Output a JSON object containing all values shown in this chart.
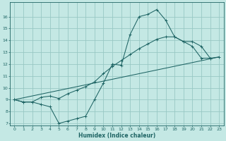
{
  "background_color": "#c4e8e4",
  "grid_color": "#98c8c4",
  "line_color": "#1e6464",
  "xlabel": "Humidex (Indice chaleur)",
  "xlim": [
    -0.5,
    23.5
  ],
  "ylim": [
    6.8,
    17.2
  ],
  "xticks": [
    0,
    1,
    2,
    3,
    4,
    5,
    6,
    7,
    8,
    9,
    10,
    11,
    12,
    13,
    14,
    15,
    16,
    17,
    18,
    19,
    20,
    21,
    22,
    23
  ],
  "yticks": [
    7,
    8,
    9,
    10,
    11,
    12,
    13,
    14,
    15,
    16
  ],
  "curve1_x": [
    0,
    1,
    2,
    3,
    4,
    5,
    6,
    7,
    8,
    9,
    10,
    11,
    12,
    13,
    14,
    15,
    16,
    17,
    18,
    19,
    20,
    21,
    22
  ],
  "curve1_y": [
    9.0,
    8.8,
    8.8,
    8.6,
    8.4,
    7.0,
    7.2,
    7.4,
    7.6,
    9.0,
    10.4,
    12.0,
    11.9,
    14.5,
    16.0,
    16.2,
    16.6,
    15.7,
    14.3,
    13.9,
    13.5,
    12.5,
    12.5
  ],
  "curve2_x": [
    0,
    1,
    2,
    3,
    4,
    5,
    6,
    7,
    8,
    9,
    10,
    11,
    12,
    13,
    14,
    15,
    16,
    17,
    18,
    19,
    20,
    21,
    22,
    23
  ],
  "curve2_y": [
    9.0,
    8.8,
    8.8,
    9.2,
    9.3,
    9.1,
    9.5,
    9.8,
    10.1,
    10.5,
    11.2,
    11.8,
    12.3,
    12.8,
    13.3,
    13.7,
    14.1,
    14.3,
    14.3,
    13.9,
    13.9,
    13.5,
    12.5,
    12.6
  ],
  "line3_x": [
    0,
    23
  ],
  "line3_y": [
    9.0,
    12.6
  ]
}
